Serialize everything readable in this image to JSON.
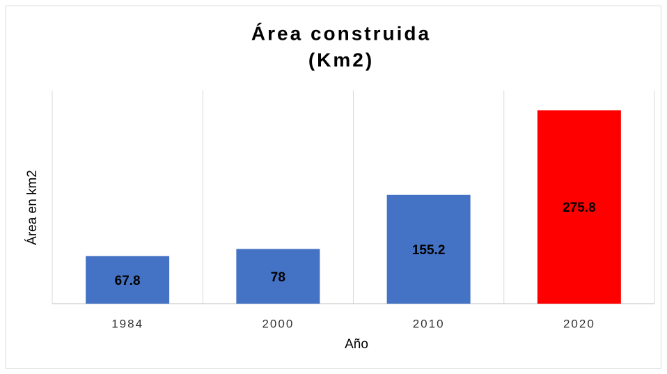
{
  "chart_data": {
    "type": "bar",
    "title": [
      "Área construida",
      "(Km2)"
    ],
    "x_label": "Año",
    "y_label": "Área en km2",
    "categories": [
      "1984",
      "2000",
      "2010",
      "2020"
    ],
    "values": [
      67.8,
      78,
      155.2,
      275.8
    ],
    "colors": [
      "#4472c4",
      "#4472c4",
      "#4472c4",
      "#ff0000"
    ],
    "ylim": [
      0,
      300
    ],
    "grid": true
  }
}
